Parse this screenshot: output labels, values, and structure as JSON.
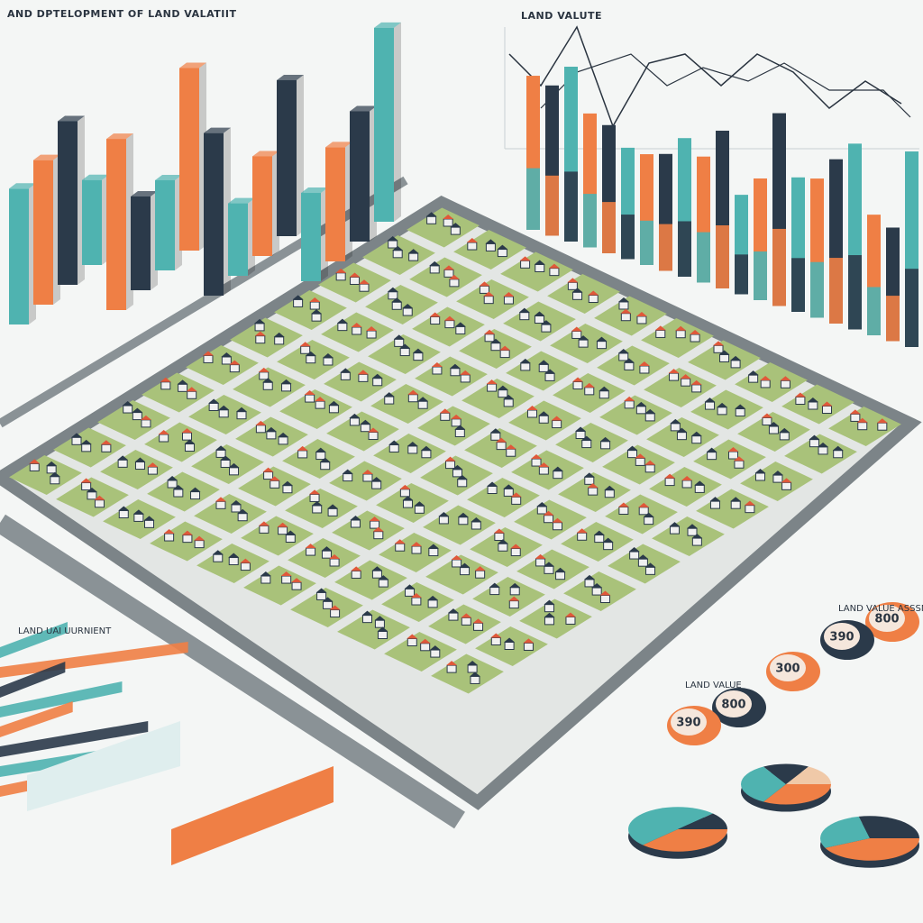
{
  "header": {
    "title": "AND DPTELOPMENT OF LAND VALATIIT",
    "subtitle": "LAND VALUTE"
  },
  "panels": {
    "right_caption": "LAND VALUE ASSSNIT",
    "left_caption": "LAND UAI UURNIENT",
    "mid_caption": "LAND VALUE"
  },
  "badges": [
    "800",
    "390",
    "300",
    "800",
    "390"
  ]
}
